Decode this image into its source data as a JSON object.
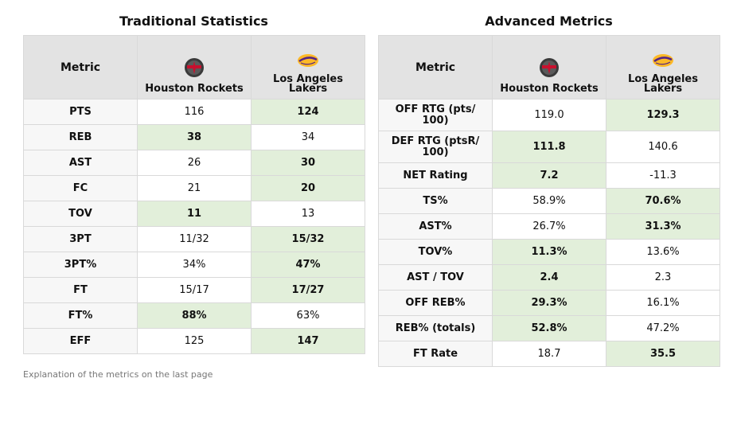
{
  "traditional": {
    "title": "Traditional Statistics",
    "metric_header": "Metric",
    "team1": "Houston Rockets",
    "team2": "Los Angeles Lakers",
    "rows": [
      {
        "metric": "PTS",
        "team1": "116",
        "team2": "124",
        "winner": 2
      },
      {
        "metric": "REB",
        "team1": "38",
        "team2": "34",
        "winner": 1
      },
      {
        "metric": "AST",
        "team1": "26",
        "team2": "30",
        "winner": 2
      },
      {
        "metric": "FC",
        "team1": "21",
        "team2": "20",
        "winner": 2
      },
      {
        "metric": "TOV",
        "team1": "11",
        "team2": "13",
        "winner": 1
      },
      {
        "metric": "3PT",
        "team1": "11/32",
        "team2": "15/32",
        "winner": 2
      },
      {
        "metric": "3PT%",
        "team1": "34%",
        "team2": "47%",
        "winner": 2
      },
      {
        "metric": "FT",
        "team1": "15/17",
        "team2": "17/27",
        "winner": 2
      },
      {
        "metric": "FT%",
        "team1": "88%",
        "team2": "63%",
        "winner": 1
      },
      {
        "metric": "EFF",
        "team1": "125",
        "team2": "147",
        "winner": 2
      }
    ]
  },
  "advanced": {
    "title": "Advanced Metrics",
    "metric_header": "Metric",
    "team1": "Houston Rockets",
    "team2": "Los Angeles Lakers",
    "rows": [
      {
        "metric": "OFF RTG (pts/ 100)",
        "team1": "119.0",
        "team2": "129.3",
        "winner": 2
      },
      {
        "metric": "DEF RTG (ptsR/ 100)",
        "team1": "111.8",
        "team2": "140.6",
        "winner": 1
      },
      {
        "metric": "NET Rating",
        "team1": "7.2",
        "team2": "-11.3",
        "winner": 1
      },
      {
        "metric": "TS%",
        "team1": "58.9%",
        "team2": "70.6%",
        "winner": 2
      },
      {
        "metric": "AST%",
        "team1": "26.7%",
        "team2": "31.3%",
        "winner": 2
      },
      {
        "metric": "TOV%",
        "team1": "11.3%",
        "team2": "13.6%",
        "winner": 1
      },
      {
        "metric": "AST / TOV",
        "team1": "2.4",
        "team2": "2.3",
        "winner": 1
      },
      {
        "metric": "OFF REB%",
        "team1": "29.3%",
        "team2": "16.1%",
        "winner": 1
      },
      {
        "metric": "REB% (totals)",
        "team1": "52.8%",
        "team2": "47.2%",
        "winner": 1
      },
      {
        "metric": "FT Rate",
        "team1": "18.7",
        "team2": "35.5",
        "winner": 2
      }
    ]
  },
  "footnote": "Explanation of the metrics on the last page",
  "colors": {
    "winner_bg": "#e2efda",
    "header_bg": "#e3e3e3",
    "metric_bg": "#f7f7f7"
  },
  "logos": {
    "team1": "rockets-logo-icon",
    "team2": "lakers-logo-icon"
  }
}
